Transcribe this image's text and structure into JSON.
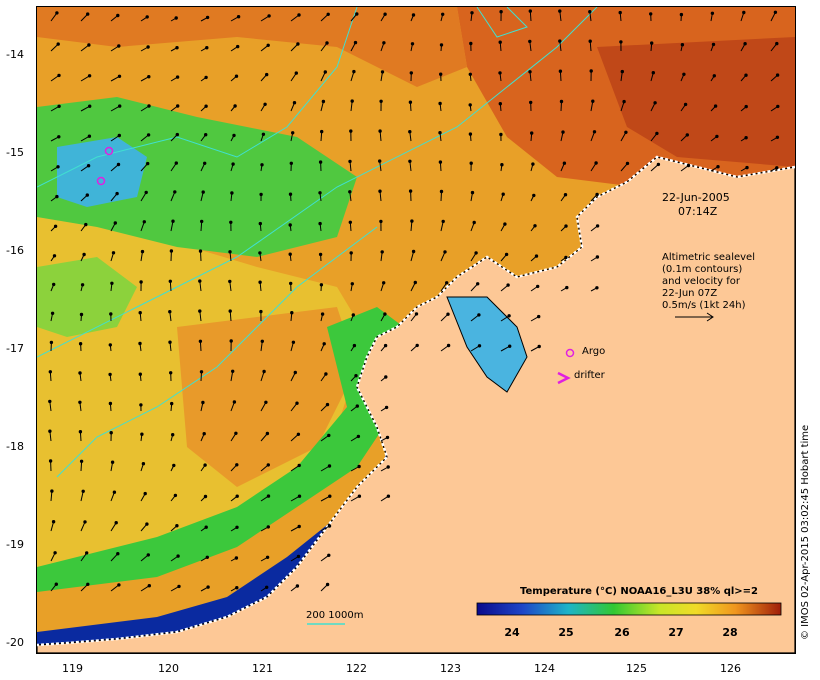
{
  "map": {
    "lon_ticks": [
      "119",
      "120",
      "121",
      "122",
      "123",
      "124",
      "125",
      "126"
    ],
    "lat_ticks": [
      "-14",
      "-15",
      "-16",
      "-17",
      "-18",
      "-19",
      "-20"
    ],
    "lon_range": [
      118.7,
      126.7
    ],
    "lat_range": [
      -13.6,
      -20.1
    ]
  },
  "annotations": {
    "date": "22-Jun-2005",
    "time": "07:14Z",
    "legend_lines": [
      "Altimetric sealevel",
      "(0.1m contours)",
      "and velocity for",
      "22-Jun 07Z",
      "0.5m/s (1kt 24h)"
    ],
    "argo_label": "Argo",
    "drifter_label": "drifter",
    "contour_label": "200  1000m",
    "credit": "© IMOS 02-Apr-2015 03:02:45 Hobart time"
  },
  "colorbar": {
    "title": "Temperature (°C) NOAA16_L3U 38% ql>=2",
    "ticks": [
      "24",
      "25",
      "26",
      "27",
      "28"
    ]
  },
  "colors": {
    "land": "#fdc896",
    "warm": "#e6781e",
    "hot": "#c8461e",
    "mid": "#f0c828",
    "green": "#3cc83c",
    "cool": "#1e8cb4",
    "cold": "#0a1e96",
    "contour": "#40e0d0",
    "marker": "#e020e0"
  }
}
